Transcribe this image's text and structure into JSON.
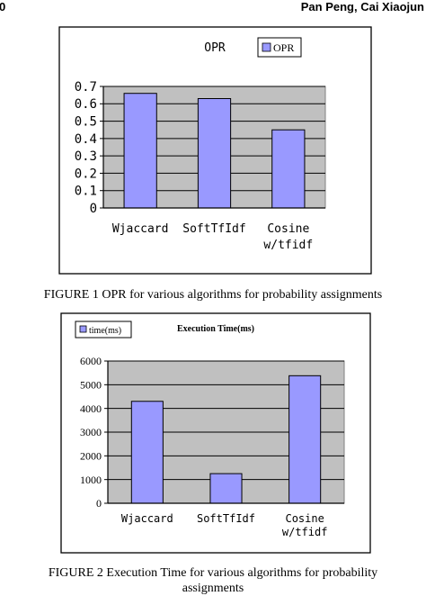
{
  "header": {
    "page_number": "0",
    "authors": "Pan Peng, Cai Xiaojun"
  },
  "colors": {
    "bar": "#9999ff",
    "plot_bg": "#c0c0c0",
    "frame": "#000000"
  },
  "chart_data": [
    {
      "type": "bar",
      "title": "OPR",
      "categories": [
        "Wjaccard",
        "SoftTfIdf",
        "Cosine w/tfidf"
      ],
      "category_lines": [
        [
          "Wjaccard"
        ],
        [
          "SoftTfIdf"
        ],
        [
          "Cosine",
          "w/tfidf"
        ]
      ],
      "series": [
        {
          "name": "OPR",
          "values": [
            0.66,
            0.63,
            0.45
          ]
        }
      ],
      "ylim": [
        0,
        0.7
      ],
      "yticks": [
        0,
        0.1,
        0.2,
        0.3,
        0.4,
        0.5,
        0.6,
        0.7
      ],
      "ytick_labels": [
        "0",
        "0.1",
        "0.2",
        "0.3",
        "0.4",
        "0.5",
        "0.6",
        "0.7"
      ],
      "grid": true,
      "legend": "top",
      "caption": "FIGURE 1 OPR for various algorithms for probability assignments"
    },
    {
      "type": "bar",
      "title": "Execution Time(ms)",
      "categories": [
        "Wjaccard",
        "SoftTfIdf",
        "Cosine w/tfidf"
      ],
      "category_lines": [
        [
          "Wjaccard"
        ],
        [
          "SoftTfIdf"
        ],
        [
          "Cosine",
          "w/tfidf"
        ]
      ],
      "series": [
        {
          "name": "time(ms)",
          "values": [
            4300,
            1250,
            5380
          ]
        }
      ],
      "ylim": [
        0,
        6000
      ],
      "yticks": [
        0,
        1000,
        2000,
        3000,
        4000,
        5000,
        6000
      ],
      "ytick_labels": [
        "0",
        "1000",
        "2000",
        "3000",
        "4000",
        "5000",
        "6000"
      ],
      "grid": true,
      "legend": "top-left",
      "caption_lines": [
        "FIGURE 2 Execution Time for various algorithms for probability",
        "assignments"
      ]
    }
  ]
}
